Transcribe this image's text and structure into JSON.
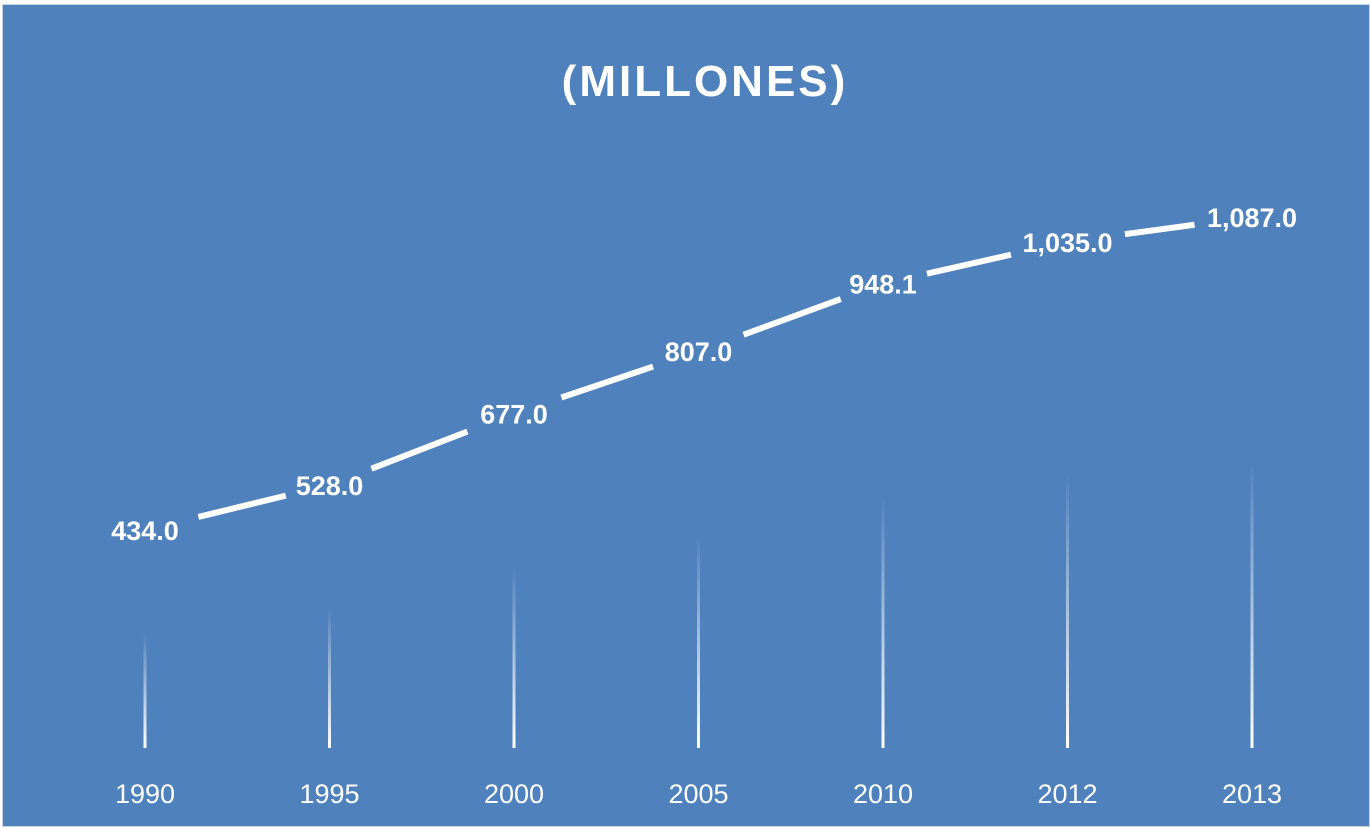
{
  "chart_data": {
    "type": "line",
    "title": "(MILLONES)",
    "xlabel": "",
    "ylabel": "",
    "categories": [
      "1990",
      "1995",
      "2000",
      "2005",
      "2010",
      "2012",
      "2013"
    ],
    "series": [
      {
        "values": [
          434.0,
          528.0,
          677.0,
          807.0,
          948.1,
          1035.0,
          1087.0
        ],
        "labels": [
          "434.0",
          "528.0",
          "677.0",
          "807.0",
          "948.1",
          "1,035.0",
          "1,087.0"
        ]
      }
    ],
    "ylim": [
      0,
      1200
    ],
    "grid": false,
    "legend": "none",
    "colors": {
      "background": "#4f81bd",
      "line": "#ffffff",
      "text": "#ffffff"
    },
    "drop_lines": true
  }
}
